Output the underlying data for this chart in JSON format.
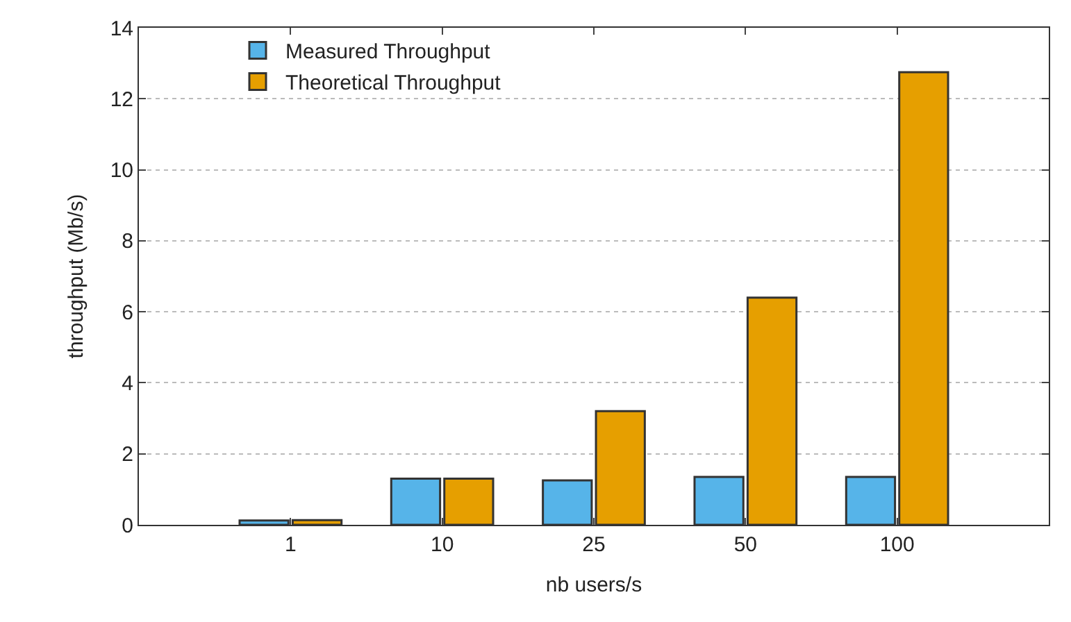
{
  "chart_data": {
    "type": "bar",
    "xlabel": "nb users/s",
    "ylabel": "throughput (Mb/s)",
    "categories": [
      "1",
      "10",
      "25",
      "50",
      "100"
    ],
    "series": [
      {
        "name": "Measured Throughput",
        "color": "#56b4e9",
        "values": [
          0.12,
          1.3,
          1.25,
          1.35,
          1.35
        ]
      },
      {
        "name": "Theoretical Throughput",
        "color": "#e69f00",
        "values": [
          0.13,
          1.3,
          3.2,
          6.4,
          12.75
        ]
      }
    ],
    "ylim": [
      0,
      14
    ],
    "yticks": [
      0,
      2,
      4,
      6,
      8,
      10,
      12,
      14
    ],
    "grid": "y",
    "legend": "top left"
  }
}
